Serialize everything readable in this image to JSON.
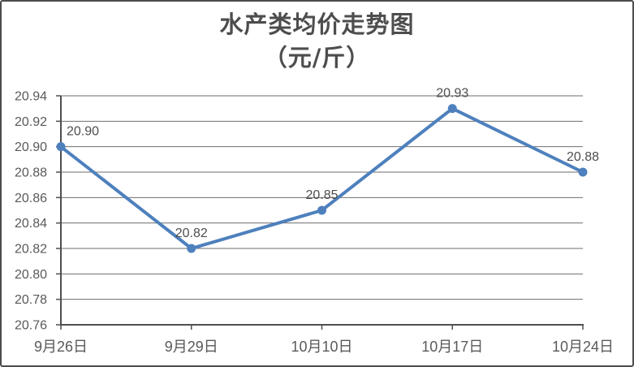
{
  "chart_data": {
    "type": "line",
    "title": "水产类均价走势图",
    "subtitle": "（元/斤）",
    "categories": [
      "9月26日",
      "9月29日",
      "10月10日",
      "10月17日",
      "10月24日"
    ],
    "values": [
      20.9,
      20.82,
      20.85,
      20.93,
      20.88
    ],
    "data_labels": [
      "20.90",
      "20.82",
      "20.85",
      "20.93",
      "20.88"
    ],
    "xlabel": "",
    "ylabel": "",
    "ylim": [
      20.76,
      20.94
    ],
    "y_axis": {
      "step": 0.02,
      "tick_labels": [
        "20.76",
        "20.78",
        "20.80",
        "20.82",
        "20.84",
        "20.86",
        "20.88",
        "20.90",
        "20.92",
        "20.94"
      ]
    },
    "grid": true,
    "legend": "none",
    "marker": "circle",
    "label_offsets_x": [
      27,
      0,
      0,
      0,
      0
    ],
    "colors": {
      "line": "#4E80BD",
      "grid": "#6e6e6e",
      "axis": "#4f4f4f",
      "tick_text": "#595959",
      "data_label_text": "#4d4d4d",
      "title_text": "#4d4d4d",
      "border": "#4d4d4d",
      "background": "#ffffff"
    }
  }
}
